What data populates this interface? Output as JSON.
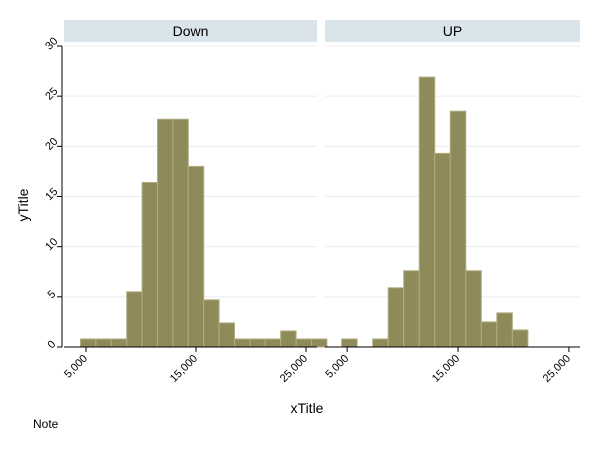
{
  "chart_data": {
    "type": "bar",
    "xlabel": "xTitle",
    "ylabel": "yTitle",
    "note": "Note",
    "ylim": [
      0,
      30
    ],
    "yticks": [
      0,
      5,
      10,
      15,
      20,
      25,
      30
    ],
    "xlim": [
      3000,
      26000
    ],
    "xticks": [
      5000,
      15000,
      25000
    ],
    "xtick_labels": [
      "5,000",
      "15,000",
      "25,000"
    ],
    "bin_width": 1400,
    "grid": true,
    "bar_color": "#8f8a5a",
    "bar_edge_color": "#b1ad80",
    "strip_color": "#d9e5eb",
    "panels": [
      {
        "name": "Down",
        "bins": [
          {
            "x0": 4500,
            "value": 0.8
          },
          {
            "x0": 5900,
            "value": 0.8
          },
          {
            "x0": 7300,
            "value": 0.8
          },
          {
            "x0": 8700,
            "value": 5.5
          },
          {
            "x0": 10100,
            "value": 16.4
          },
          {
            "x0": 11500,
            "value": 22.7
          },
          {
            "x0": 12900,
            "value": 22.7
          },
          {
            "x0": 14300,
            "value": 18.0
          },
          {
            "x0": 15700,
            "value": 4.7
          },
          {
            "x0": 17100,
            "value": 2.4
          },
          {
            "x0": 18500,
            "value": 0.8
          },
          {
            "x0": 19900,
            "value": 0.8
          },
          {
            "x0": 21300,
            "value": 0.8
          },
          {
            "x0": 22700,
            "value": 1.6
          },
          {
            "x0": 24100,
            "value": 0.8
          },
          {
            "x0": 25500,
            "value": 0.8
          }
        ]
      },
      {
        "name": "UP",
        "bins": [
          {
            "x0": 4500,
            "value": 0.8
          },
          {
            "x0": 5900,
            "value": 0
          },
          {
            "x0": 7300,
            "value": 0.8
          },
          {
            "x0": 8700,
            "value": 5.9
          },
          {
            "x0": 10100,
            "value": 7.6
          },
          {
            "x0": 11500,
            "value": 26.9
          },
          {
            "x0": 12900,
            "value": 19.3
          },
          {
            "x0": 14300,
            "value": 23.5
          },
          {
            "x0": 15700,
            "value": 7.6
          },
          {
            "x0": 17100,
            "value": 2.5
          },
          {
            "x0": 18500,
            "value": 3.4
          },
          {
            "x0": 19900,
            "value": 1.7
          }
        ]
      }
    ]
  }
}
